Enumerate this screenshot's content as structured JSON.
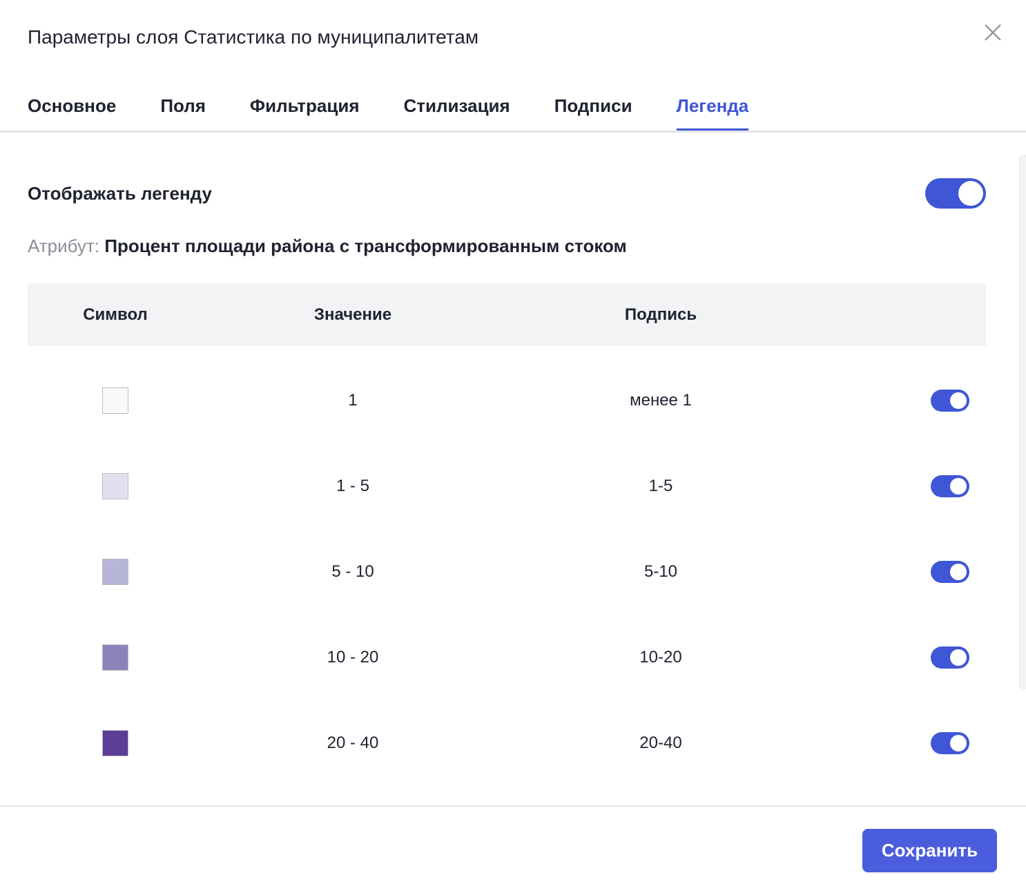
{
  "dialog": {
    "title": "Параметры слоя Статистика по муниципалитетам",
    "tabs": [
      "Основное",
      "Поля",
      "Фильтрация",
      "Стилизация",
      "Подписи",
      "Легенда"
    ],
    "active_tab": 5,
    "show_legend": {
      "label": "Отображать легенду",
      "on": true
    },
    "attribute": {
      "label": "Атрибут:",
      "value": "Процент площади района с трансформированным стоком"
    },
    "table": {
      "headers": [
        "Символ",
        "Значение",
        "Подпись"
      ],
      "rows": [
        {
          "color": "#f9f9fb",
          "value": "1",
          "label": "менее 1",
          "on": true
        },
        {
          "color": "#e1e0ee",
          "value": "1 - 5",
          "label": "1-5",
          "on": true
        },
        {
          "color": "#b8b6d8",
          "value": "5 - 10",
          "label": "5-10",
          "on": true
        },
        {
          "color": "#8a84bb",
          "value": "10 - 20",
          "label": "10-20",
          "on": true
        },
        {
          "color": "#5b3d95",
          "value": "20 - 40",
          "label": "20-40",
          "on": true
        }
      ]
    },
    "save_button": "Сохранить"
  }
}
